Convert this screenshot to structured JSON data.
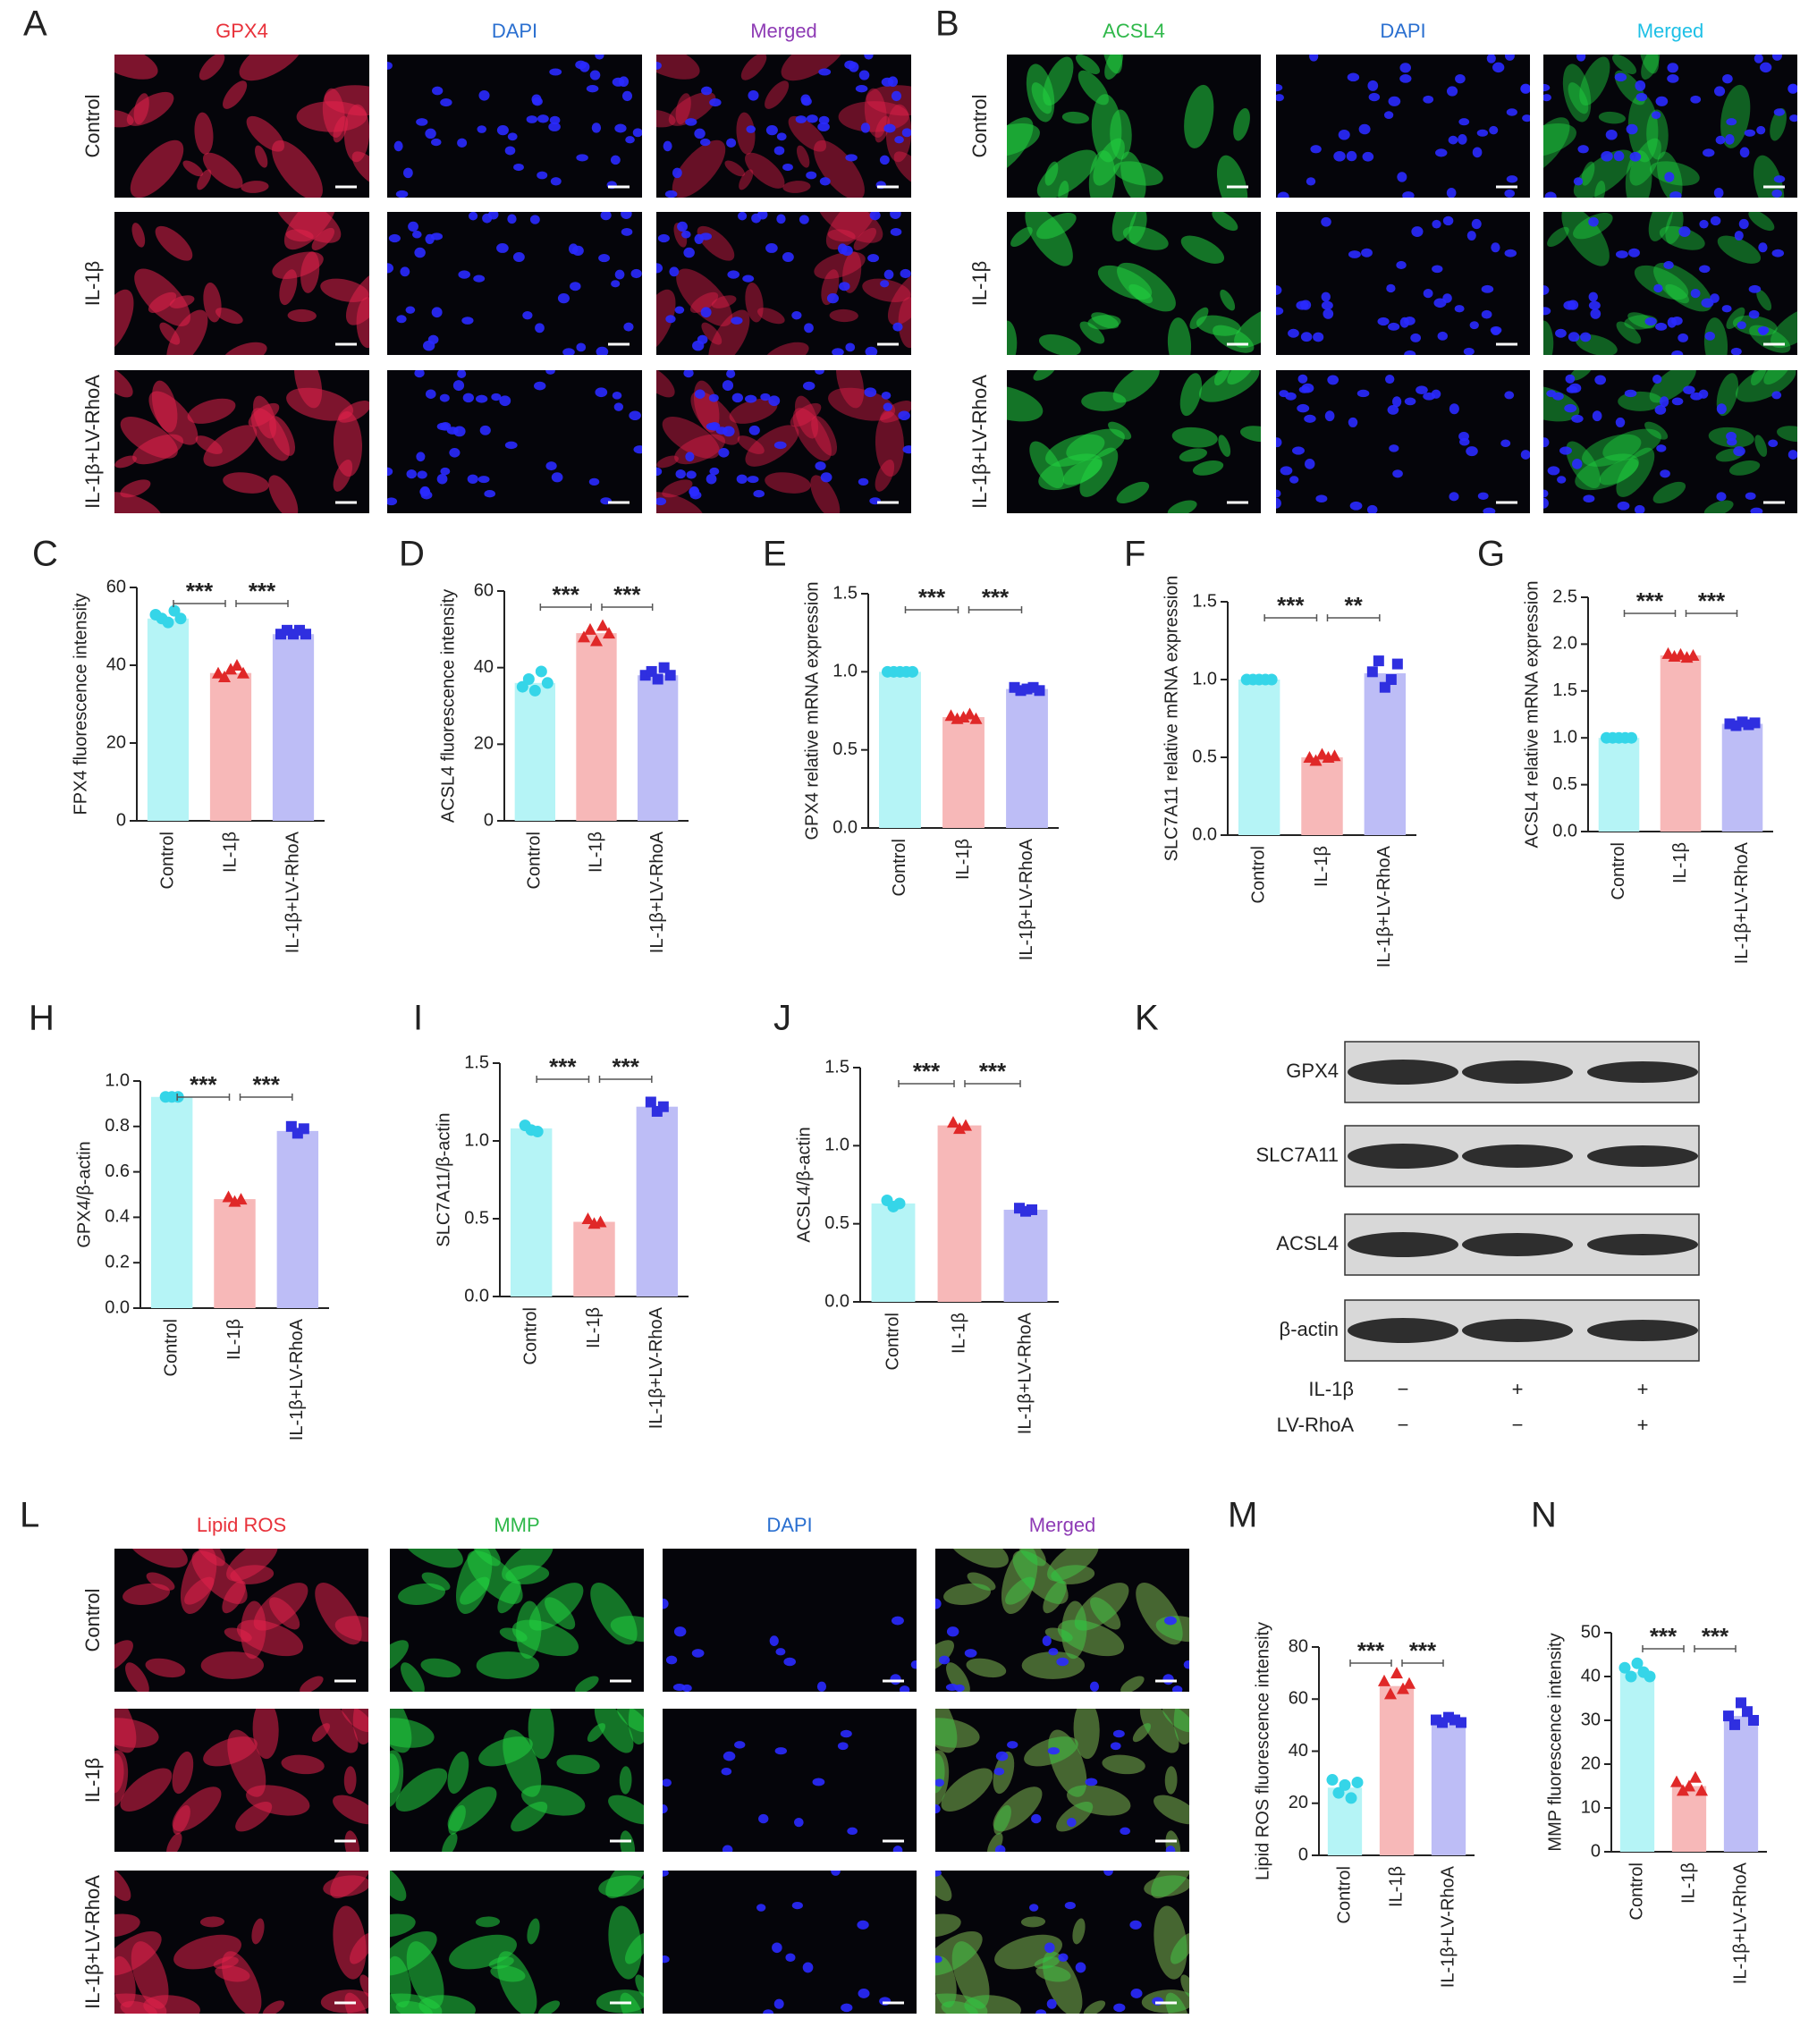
{
  "chart_data": [
    {
      "type": "bar",
      "panel": "C",
      "ylabel": "FPX4 fluorescence intensity",
      "categories": [
        "Control",
        "IL-1β",
        "IL-1β+LV-RhoA"
      ],
      "values": [
        52,
        38,
        48
      ],
      "points": [
        [
          53,
          52,
          51,
          54,
          52
        ],
        [
          38,
          37,
          39,
          40,
          38
        ],
        [
          48,
          49,
          48,
          49,
          48
        ]
      ],
      "colors": [
        "#b5f4f6",
        "#f7b8b8",
        "#bdbdf6"
      ],
      "point_colors": [
        "#35d5e8",
        "#e02828",
        "#2f2fe0"
      ],
      "markers": [
        "circle",
        "triangle",
        "square"
      ],
      "ylim": [
        0,
        60
      ],
      "yticks": [
        0,
        20,
        40,
        60
      ],
      "significance": [
        "***",
        "***"
      ]
    },
    {
      "type": "bar",
      "panel": "D",
      "ylabel": "ACSL4 fluorescence intensity",
      "categories": [
        "Control",
        "IL-1β",
        "IL-1β+LV-RhoA"
      ],
      "values": [
        36,
        49,
        38
      ],
      "points": [
        [
          35,
          37,
          34,
          39,
          36
        ],
        [
          48,
          50,
          47,
          51,
          49
        ],
        [
          38,
          39,
          37,
          40,
          38
        ]
      ],
      "colors": [
        "#b5f4f6",
        "#f7b8b8",
        "#bdbdf6"
      ],
      "point_colors": [
        "#35d5e8",
        "#e02828",
        "#2f2fe0"
      ],
      "markers": [
        "circle",
        "triangle",
        "square"
      ],
      "ylim": [
        0,
        60
      ],
      "yticks": [
        0,
        20,
        40,
        60
      ],
      "significance": [
        "***",
        "***"
      ]
    },
    {
      "type": "bar",
      "panel": "E",
      "ylabel": "GPX4 relative mRNA expression",
      "categories": [
        "Control",
        "IL-1β",
        "IL-1β+LV-RhoA"
      ],
      "values": [
        1.0,
        0.71,
        0.89
      ],
      "points": [
        [
          1,
          1,
          1,
          1,
          1
        ],
        [
          0.72,
          0.7,
          0.71,
          0.73,
          0.7
        ],
        [
          0.9,
          0.88,
          0.89,
          0.9,
          0.88
        ]
      ],
      "colors": [
        "#b5f4f6",
        "#f7b8b8",
        "#bdbdf6"
      ],
      "point_colors": [
        "#35d5e8",
        "#e02828",
        "#2f2fe0"
      ],
      "markers": [
        "circle",
        "triangle",
        "square"
      ],
      "ylim": [
        0,
        1.5
      ],
      "yticks": [
        {
          "value": 0,
          "label": "0.0"
        },
        0.5,
        {
          "value": 1,
          "label": "1.0"
        },
        1.5
      ],
      "significance": [
        "***",
        "***"
      ]
    },
    {
      "type": "bar",
      "panel": "F",
      "ylabel": "SLC7A11 relative mRNA expression",
      "categories": [
        "Control",
        "IL-1β",
        "IL-1β+LV-RhoA"
      ],
      "values": [
        1.0,
        0.5,
        1.04
      ],
      "points": [
        [
          1,
          1,
          1,
          1,
          1
        ],
        [
          0.5,
          0.48,
          0.52,
          0.5,
          0.51
        ],
        [
          1.05,
          1.12,
          0.95,
          1.0,
          1.1
        ]
      ],
      "colors": [
        "#b5f4f6",
        "#f7b8b8",
        "#bdbdf6"
      ],
      "point_colors": [
        "#35d5e8",
        "#e02828",
        "#2f2fe0"
      ],
      "markers": [
        "circle",
        "triangle",
        "square"
      ],
      "ylim": [
        0,
        1.5
      ],
      "yticks": [
        {
          "value": 0,
          "label": "0.0"
        },
        0.5,
        {
          "value": 1,
          "label": "1.0"
        },
        1.5
      ],
      "significance": [
        "***",
        "**"
      ]
    },
    {
      "type": "bar",
      "panel": "G",
      "ylabel": "ACSL4 relative mRNA expression",
      "categories": [
        "Control",
        "IL-1β",
        "IL-1β+LV-RhoA"
      ],
      "values": [
        1.0,
        1.88,
        1.15
      ],
      "points": [
        [
          1,
          1,
          1,
          1,
          1
        ],
        [
          1.9,
          1.87,
          1.89,
          1.86,
          1.88
        ],
        [
          1.15,
          1.13,
          1.17,
          1.14,
          1.16
        ]
      ],
      "colors": [
        "#b5f4f6",
        "#f7b8b8",
        "#bdbdf6"
      ],
      "point_colors": [
        "#35d5e8",
        "#e02828",
        "#2f2fe0"
      ],
      "markers": [
        "circle",
        "triangle",
        "square"
      ],
      "ylim": [
        0,
        2.5
      ],
      "yticks": [
        {
          "value": 0,
          "label": "0.0"
        },
        0.5,
        {
          "value": 1,
          "label": "1.0"
        },
        1.5,
        {
          "value": 2,
          "label": "2.0"
        },
        2.5
      ],
      "significance": [
        "***",
        "***"
      ]
    },
    {
      "type": "bar",
      "panel": "H",
      "ylabel": "GPX4/β-actin",
      "categories": [
        "Control",
        "IL-1β",
        "IL-1β+LV-RhoA"
      ],
      "values": [
        0.93,
        0.48,
        0.78
      ],
      "points": [
        [
          0.93,
          0.93,
          0.93
        ],
        [
          0.49,
          0.47,
          0.48
        ],
        [
          0.8,
          0.77,
          0.79
        ]
      ],
      "colors": [
        "#b5f4f6",
        "#f7b8b8",
        "#bdbdf6"
      ],
      "point_colors": [
        "#35d5e8",
        "#e02828",
        "#2f2fe0"
      ],
      "markers": [
        "circle",
        "triangle",
        "square"
      ],
      "ylim": [
        0,
        1.0
      ],
      "yticks": [
        {
          "value": 0,
          "label": "0.0"
        },
        0.2,
        0.4,
        0.6,
        0.8,
        {
          "value": 1,
          "label": "1.0"
        }
      ],
      "significance": [
        "***",
        "***"
      ]
    },
    {
      "type": "bar",
      "panel": "I",
      "ylabel": "SLC7A11/β-actin",
      "categories": [
        "Control",
        "IL-1β",
        "IL-1β+LV-RhoA"
      ],
      "values": [
        1.08,
        0.48,
        1.22
      ],
      "points": [
        [
          1.1,
          1.07,
          1.06
        ],
        [
          0.5,
          0.47,
          0.48
        ],
        [
          1.25,
          1.19,
          1.22
        ]
      ],
      "colors": [
        "#b5f4f6",
        "#f7b8b8",
        "#bdbdf6"
      ],
      "point_colors": [
        "#35d5e8",
        "#e02828",
        "#2f2fe0"
      ],
      "markers": [
        "circle",
        "triangle",
        "square"
      ],
      "ylim": [
        0,
        1.5
      ],
      "yticks": [
        {
          "value": 0,
          "label": "0.0"
        },
        0.5,
        {
          "value": 1,
          "label": "1.0"
        },
        1.5
      ],
      "significance": [
        "***",
        "***"
      ]
    },
    {
      "type": "bar",
      "panel": "J",
      "ylabel": "ACSL4/β-actin",
      "categories": [
        "Control",
        "IL-1β",
        "IL-1β+LV-RhoA"
      ],
      "values": [
        0.63,
        1.13,
        0.59
      ],
      "points": [
        [
          0.65,
          0.61,
          0.63
        ],
        [
          1.15,
          1.11,
          1.13
        ],
        [
          0.6,
          0.58,
          0.59
        ]
      ],
      "colors": [
        "#b5f4f6",
        "#f7b8b8",
        "#bdbdf6"
      ],
      "point_colors": [
        "#35d5e8",
        "#e02828",
        "#2f2fe0"
      ],
      "markers": [
        "circle",
        "triangle",
        "square"
      ],
      "ylim": [
        0,
        1.5
      ],
      "yticks": [
        {
          "value": 0,
          "label": "0.0"
        },
        0.5,
        {
          "value": 1,
          "label": "1.0"
        },
        1.5
      ],
      "significance": [
        "***",
        "***"
      ]
    },
    {
      "type": "bar",
      "panel": "M",
      "ylabel": "Lipid ROS fluorescence intensity",
      "categories": [
        "Control",
        "IL-1β",
        "IL-1β+LV-RhoA"
      ],
      "values": [
        26,
        65,
        52
      ],
      "points": [
        [
          29,
          24,
          27,
          22,
          28
        ],
        [
          67,
          62,
          70,
          64,
          66
        ],
        [
          52,
          51,
          53,
          52,
          51
        ]
      ],
      "colors": [
        "#b5f4f6",
        "#f7b8b8",
        "#bdbdf6"
      ],
      "point_colors": [
        "#35d5e8",
        "#e02828",
        "#2f2fe0"
      ],
      "markers": [
        "circle",
        "triangle",
        "square"
      ],
      "ylim": [
        0,
        80
      ],
      "yticks": [
        0,
        20,
        40,
        60,
        80
      ],
      "significance": [
        "***",
        "***"
      ]
    },
    {
      "type": "bar",
      "panel": "N",
      "ylabel": "MMP fluorescence intensity",
      "categories": [
        "Control",
        "IL-1β",
        "IL-1β+LV-RhoA"
      ],
      "values": [
        41,
        15,
        31
      ],
      "points": [
        [
          42,
          40,
          43,
          41,
          40
        ],
        [
          16,
          14,
          15,
          17,
          14
        ],
        [
          31,
          29,
          34,
          32,
          30
        ]
      ],
      "colors": [
        "#b5f4f6",
        "#f7b8b8",
        "#bdbdf6"
      ],
      "point_colors": [
        "#35d5e8",
        "#e02828",
        "#2f2fe0"
      ],
      "markers": [
        "circle",
        "triangle",
        "square"
      ],
      "ylim": [
        0,
        50
      ],
      "yticks": [
        0,
        10,
        20,
        30,
        40,
        50
      ],
      "significance": [
        "***",
        "***"
      ]
    }
  ],
  "figure": {
    "image_panels": [
      {
        "panel": "A",
        "columns": [
          {
            "title": "GPX4",
            "color": "#e8313a"
          },
          {
            "title": "DAPI",
            "color": "#2a6fd0"
          },
          {
            "title": "Merged",
            "color": "#8e3bb5"
          }
        ],
        "rows": [
          "Control",
          "IL-1β",
          "IL-1β+LV-RhoA"
        ]
      },
      {
        "panel": "B",
        "columns": [
          {
            "title": "ACSL4",
            "color": "#2fb84a"
          },
          {
            "title": "DAPI",
            "color": "#2a6fd0"
          },
          {
            "title": "Merged",
            "color": "#1ec0e6"
          }
        ],
        "rows": [
          "Control",
          "IL-1β",
          "IL-1β+LV-RhoA"
        ]
      },
      {
        "panel": "L",
        "columns": [
          {
            "title": "Lipid ROS",
            "color": "#e8313a"
          },
          {
            "title": "MMP",
            "color": "#2fb84a"
          },
          {
            "title": "DAPI",
            "color": "#2a6fd0"
          },
          {
            "title": "Merged",
            "color": "#8e3bb5"
          }
        ],
        "rows": [
          "Control",
          "IL-1β",
          "IL-1β+LV-RhoA"
        ]
      }
    ],
    "blot": {
      "panel": "K",
      "proteins": [
        "GPX4",
        "SLC7A11",
        "ACSL4",
        "β-actin"
      ],
      "conditions": [
        {
          "name": "IL-1β",
          "lanes": [
            "−",
            "+",
            "+"
          ]
        },
        {
          "name": "LV-RhoA",
          "lanes": [
            "−",
            "−",
            "+"
          ]
        }
      ]
    }
  }
}
